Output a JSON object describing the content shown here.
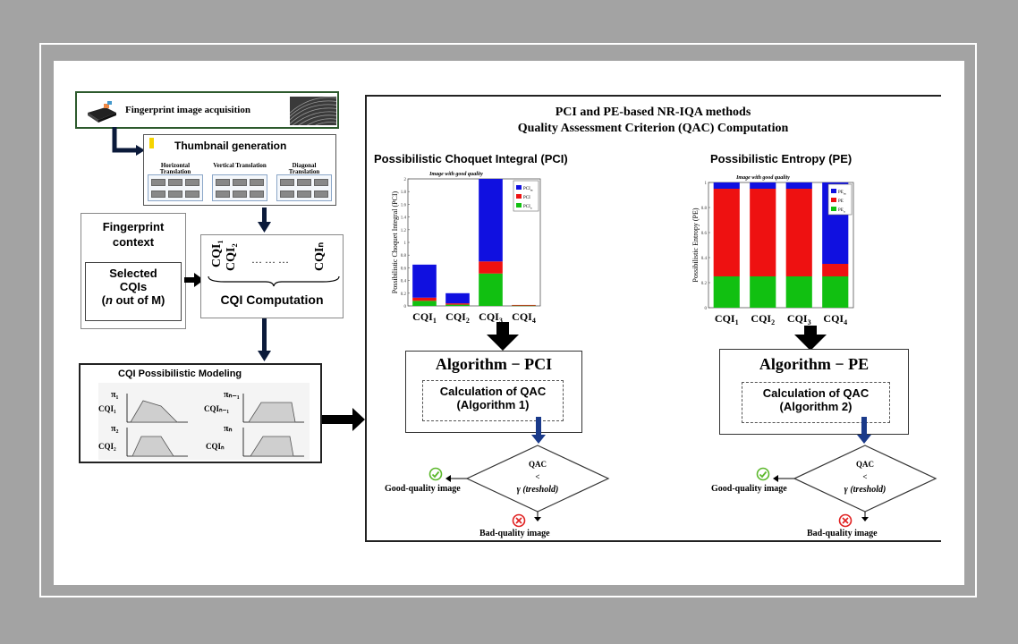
{
  "acquisition": {
    "label": "Fingerprint image acquisition"
  },
  "thumbnail": {
    "title": "Thumbnail generation",
    "groups": [
      {
        "label": "Horizontal Translation"
      },
      {
        "label": "Vertical Translation"
      },
      {
        "label": "Diagonal Translation"
      }
    ]
  },
  "context": {
    "title": "Fingerprint context",
    "selected": {
      "line1": "Selected",
      "line2": "CQIs",
      "line3_italic": "n",
      "line3_rest": " out of M)",
      "line3_open": "("
    }
  },
  "cqi_computation": {
    "label": "CQI Computation",
    "cqi1": "CQI₁",
    "cqi2": "CQI₂",
    "dots": "…  …  …",
    "cqin": "CQIₙ"
  },
  "modeling": {
    "title": "CQI  Possibilistic Modeling",
    "pi1": "π₁",
    "cqi1": "CQI₁",
    "pin1": "πₙ₋₁",
    "cqin1": "CQIₙ₋₁",
    "pi2": "π₂",
    "cqi2": "CQI₂",
    "pin": "πₙ",
    "cqin": "CQIₙ"
  },
  "panel": {
    "title1": "PCI and PE-based NR-IQA methods",
    "title2": "Quality Assessment Criterion  (QAC) Computation"
  },
  "pci": {
    "heading": "Possibilistic Choquet Integral (PCI)",
    "subtitle": "Image with good quality",
    "ylabel": "Possibilistic Choquet Integral (PCI)",
    "algorithm": "Algorithm  − PCI",
    "calc1": "Calculation of QAC",
    "calc2": "(Algorithm 1)"
  },
  "pe": {
    "heading": "Possibilistic Entropy (PE)",
    "subtitle": "Image with good quality",
    "ylabel": "Possibilistic Entropy (PE)",
    "algorithm": "Algorithm  − PE",
    "calc1": "Calculation of QAC",
    "calc2": "(Algorithm 2)"
  },
  "decision": {
    "qac": "QAC",
    "lt": "<",
    "gamma": "γ (treshold)",
    "good": "Good-quality image",
    "bad": "Bad-quality image"
  },
  "colors": {
    "blue": "#1010e0",
    "red": "#ee1111",
    "green": "#11c011",
    "dark_arrow": "#000000",
    "blue_arrow": "#1a3a8a"
  },
  "chart_data": [
    {
      "type": "bar",
      "stacked": true,
      "title": "Image with good quality",
      "ylabel": "Possibilistic Choquet Integral (PCI)",
      "categories": [
        "CQI1",
        "CQI2",
        "CQI3",
        "CQI4"
      ],
      "ylim": [
        0,
        2
      ],
      "yticks": [
        "0",
        "0.2",
        "0.4",
        "0.6",
        "0.8",
        "1",
        "1.2",
        "1.4",
        "1.6",
        "1.8",
        "2"
      ],
      "legend": "top-right",
      "series": [
        {
          "name": "PCIn",
          "color": "#11c011",
          "values": [
            0.08,
            0.02,
            0.51,
            0.005
          ]
        },
        {
          "name": "PCI",
          "color": "#ee1111",
          "values": [
            0.05,
            0.02,
            0.19,
            0.01
          ]
        },
        {
          "name": "PCIm",
          "color": "#1010e0",
          "values": [
            0.52,
            0.16,
            1.3,
            0.0
          ]
        }
      ]
    },
    {
      "type": "bar",
      "stacked": true,
      "title": "Image with good quality",
      "ylabel": "Possibilistic Entropy (PE)",
      "categories": [
        "CQI1",
        "CQI2",
        "CQI3",
        "CQI4"
      ],
      "ylim": [
        0,
        1
      ],
      "yticks": [
        "0",
        "0.2",
        "0.4",
        "0.6",
        "0.8",
        "1"
      ],
      "legend": "top-right",
      "series": [
        {
          "name": "PEn",
          "color": "#11c011",
          "values": [
            0.25,
            0.25,
            0.25,
            0.25
          ]
        },
        {
          "name": "PE",
          "color": "#ee1111",
          "values": [
            0.7,
            0.7,
            0.7,
            0.1
          ]
        },
        {
          "name": "PEm",
          "color": "#1010e0",
          "values": [
            0.05,
            0.05,
            0.05,
            0.65
          ]
        }
      ]
    }
  ]
}
